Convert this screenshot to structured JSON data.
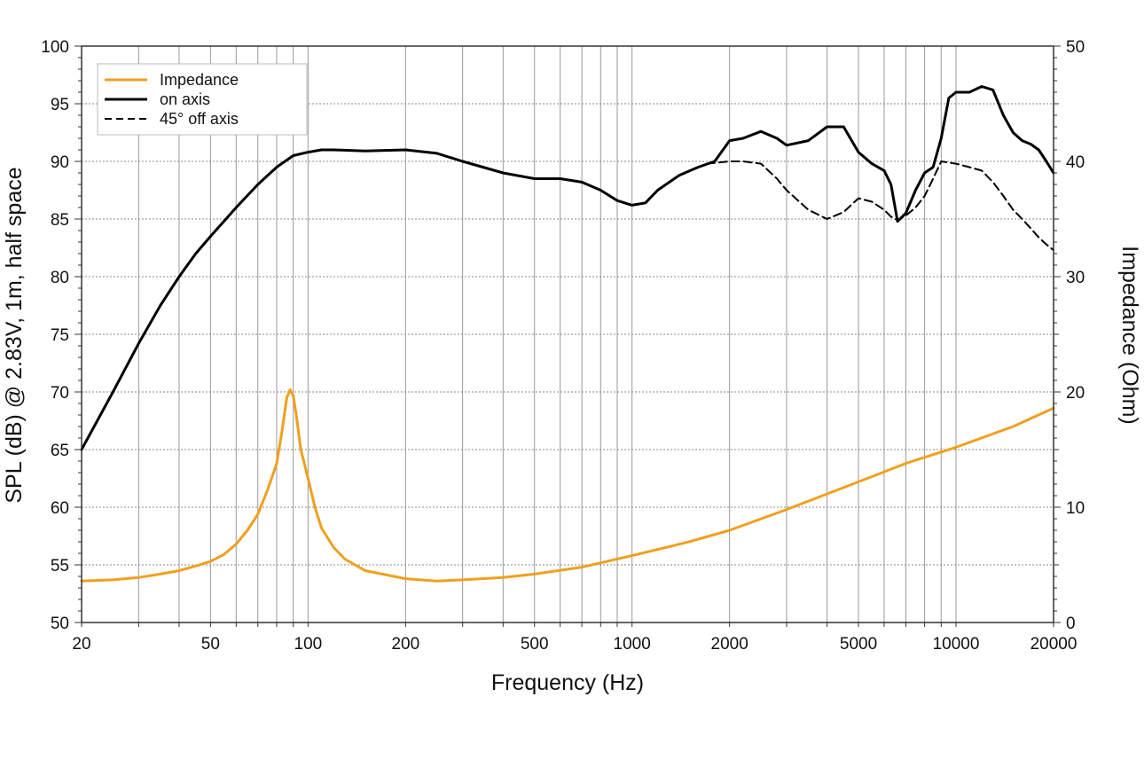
{
  "chart_data": {
    "type": "line",
    "title": "",
    "xlabel": "Frequency (Hz)",
    "ylabel": "SPL (dB) @ 2.83V, 1m, half space",
    "y2label": "Impedance (Ohm)",
    "x_scale": "log",
    "xlim": [
      20,
      20000
    ],
    "ylim": [
      50,
      100
    ],
    "y2lim": [
      0,
      50
    ],
    "x_tick_labels": [
      "20",
      "50",
      "100",
      "200",
      "500",
      "1000",
      "2000",
      "5000",
      "10000",
      "20000"
    ],
    "x_tick_values": [
      20,
      50,
      100,
      200,
      500,
      1000,
      2000,
      5000,
      10000,
      20000
    ],
    "y_tick_labels": [
      "50",
      "55",
      "60",
      "65",
      "70",
      "75",
      "80",
      "85",
      "90",
      "95",
      "100"
    ],
    "y_tick_values": [
      50,
      55,
      60,
      65,
      70,
      75,
      80,
      85,
      90,
      95,
      100
    ],
    "y2_tick_labels": [
      "0",
      "10",
      "20",
      "30",
      "40",
      "50"
    ],
    "y2_tick_values": [
      0,
      10,
      20,
      30,
      40,
      50
    ],
    "grid": true,
    "legend_position": "top-left",
    "series": [
      {
        "name": "Impedance",
        "axis": "right",
        "color": "#f0a01e",
        "style": "solid",
        "x": [
          20,
          25,
          30,
          35,
          40,
          45,
          50,
          55,
          60,
          65,
          70,
          75,
          80,
          83,
          86,
          88,
          90,
          92,
          95,
          100,
          105,
          110,
          120,
          130,
          150,
          200,
          250,
          300,
          400,
          500,
          700,
          1000,
          1500,
          2000,
          3000,
          5000,
          7000,
          10000,
          15000,
          20000
        ],
        "values": [
          3.6,
          3.7,
          3.9,
          4.2,
          4.5,
          4.9,
          5.3,
          5.9,
          6.8,
          8.0,
          9.4,
          11.5,
          13.8,
          16.5,
          19.5,
          20.2,
          19.7,
          18.0,
          15.0,
          12.5,
          10.0,
          8.2,
          6.5,
          5.5,
          4.5,
          3.8,
          3.6,
          3.7,
          3.9,
          4.2,
          4.8,
          5.8,
          7.0,
          8.0,
          9.8,
          12.2,
          13.8,
          15.2,
          17.0,
          18.6
        ]
      },
      {
        "name": "on axis",
        "axis": "left",
        "color": "#000000",
        "style": "solid",
        "x": [
          20,
          25,
          30,
          35,
          40,
          45,
          50,
          60,
          70,
          80,
          90,
          100,
          110,
          120,
          150,
          200,
          250,
          300,
          400,
          500,
          600,
          700,
          800,
          900,
          1000,
          1100,
          1200,
          1400,
          1600,
          1800,
          2000,
          2200,
          2500,
          2800,
          3000,
          3500,
          4000,
          4500,
          5000,
          5500,
          6000,
          6300,
          6600,
          7000,
          7500,
          8000,
          8500,
          9000,
          9500,
          10000,
          11000,
          12000,
          13000,
          14000,
          15000,
          16000,
          17000,
          18000,
          19000,
          20000
        ],
        "values": [
          65.0,
          70.0,
          74.2,
          77.5,
          80.0,
          82.0,
          83.5,
          86.0,
          88.0,
          89.5,
          90.5,
          90.8,
          91.0,
          91.0,
          90.9,
          91.0,
          90.7,
          90.0,
          89.0,
          88.5,
          88.5,
          88.2,
          87.5,
          86.6,
          86.2,
          86.4,
          87.5,
          88.8,
          89.5,
          90.0,
          91.8,
          92.0,
          92.6,
          92.0,
          91.4,
          91.8,
          93.0,
          93.0,
          90.8,
          89.8,
          89.2,
          88.0,
          84.8,
          85.5,
          87.5,
          89.0,
          89.5,
          92.0,
          95.5,
          96.0,
          96.0,
          96.5,
          96.2,
          94.0,
          92.5,
          91.8,
          91.5,
          91.0,
          90.0,
          89.0
        ]
      },
      {
        "name": "45° off axis",
        "axis": "left",
        "color": "#000000",
        "style": "dashed",
        "x": [
          1700,
          2000,
          2200,
          2500,
          2800,
          3000,
          3500,
          4000,
          4500,
          5000,
          5500,
          6000,
          6300,
          6600,
          7000,
          7500,
          8000,
          8500,
          9000,
          10000,
          11000,
          12000,
          13000,
          14000,
          15000,
          16000,
          17000,
          18000,
          19000,
          20000
        ],
        "values": [
          89.8,
          90.0,
          90.0,
          89.8,
          88.5,
          87.5,
          85.8,
          85.0,
          85.6,
          86.8,
          86.5,
          85.8,
          85.2,
          84.9,
          85.3,
          86.0,
          87.0,
          88.5,
          90.0,
          89.8,
          89.5,
          89.2,
          88.2,
          87.0,
          85.8,
          85.0,
          84.2,
          83.4,
          82.8,
          82.3
        ]
      }
    ]
  }
}
